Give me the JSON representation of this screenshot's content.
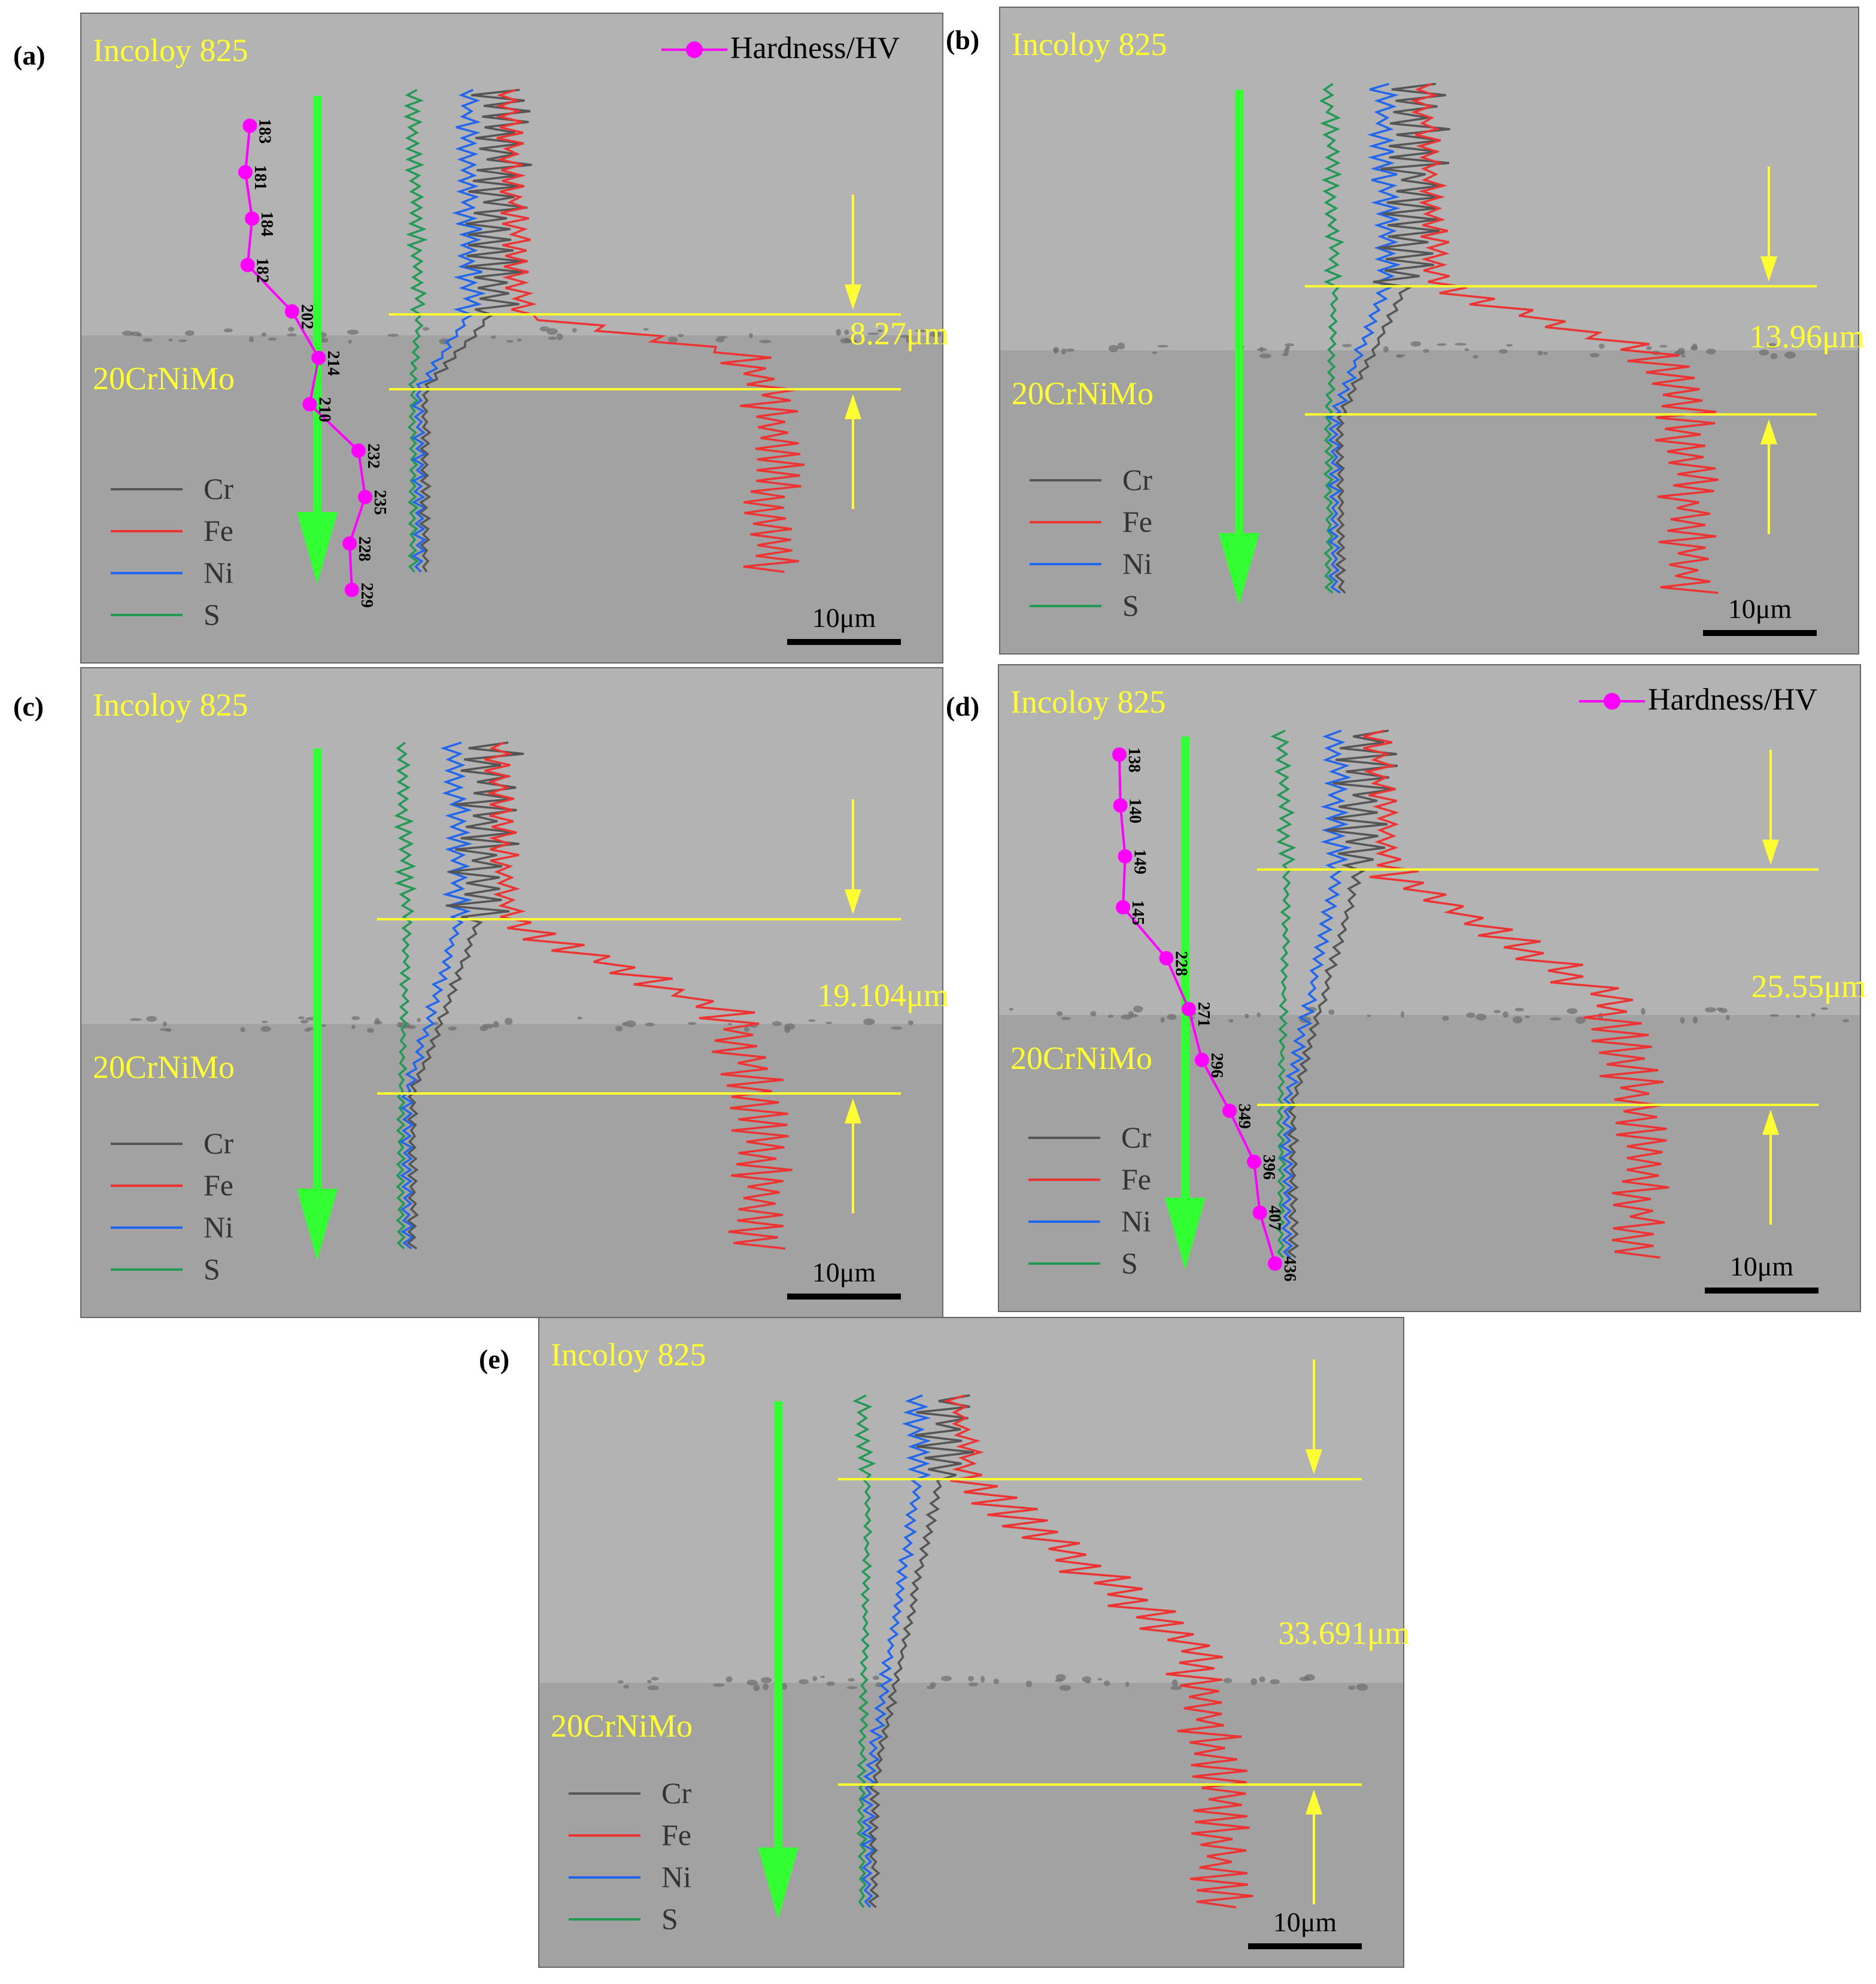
{
  "figure": {
    "colors": {
      "panel_background": "#a9a9a9",
      "upper_layer": "#b3b3b3",
      "lower_layer": "#a2a2a2",
      "label_text": "#ffff33",
      "arrow": "#33ff33",
      "yellow_line": "#ffff33",
      "scale_bar": "#000000",
      "hardness": "#ff00ff",
      "Cr": "#555555",
      "Fe": "#ee3333",
      "Ni": "#2266ee",
      "S": "#229955"
    }
  },
  "chart_data": [
    {
      "panel": "(a)",
      "type": "line",
      "top_material": "Incoloy 825",
      "bottom_material": "20CrNiMo",
      "thickness_label": "8.27μm",
      "scale_bar_label": "10μm",
      "legend": [
        "Cr",
        "Fe",
        "Ni",
        "S"
      ],
      "hardness_legend": "Hardness/HV",
      "hardness": [
        183,
        181,
        184,
        182,
        202,
        214,
        210,
        232,
        235,
        228,
        229
      ]
    },
    {
      "panel": "(b)",
      "type": "line",
      "top_material": "Incoloy 825",
      "bottom_material": "20CrNiMo",
      "thickness_label": "13.96μm",
      "scale_bar_label": "10μm",
      "legend": [
        "Cr",
        "Fe",
        "Ni",
        "S"
      ]
    },
    {
      "panel": "(c)",
      "type": "line",
      "top_material": "Incoloy 825",
      "bottom_material": "20CrNiMo",
      "thickness_label": "19.104μm",
      "scale_bar_label": "10μm",
      "legend": [
        "Cr",
        "Fe",
        "Ni",
        "S"
      ]
    },
    {
      "panel": "(d)",
      "type": "line",
      "top_material": "Incoloy 825",
      "bottom_material": "20CrNiMo",
      "thickness_label": "25.55μm",
      "scale_bar_label": "10μm",
      "legend": [
        "Cr",
        "Fe",
        "Ni",
        "S"
      ],
      "hardness_legend": "Hardness/HV",
      "hardness": [
        138,
        140,
        149,
        145,
        228,
        271,
        296,
        349,
        396,
        407,
        436
      ]
    },
    {
      "panel": "(e)",
      "type": "line",
      "top_material": "Incoloy 825",
      "bottom_material": "20CrNiMo",
      "thickness_label": "33.691μm",
      "scale_bar_label": "10μm",
      "legend": [
        "Cr",
        "Fe",
        "Ni",
        "S"
      ]
    }
  ]
}
